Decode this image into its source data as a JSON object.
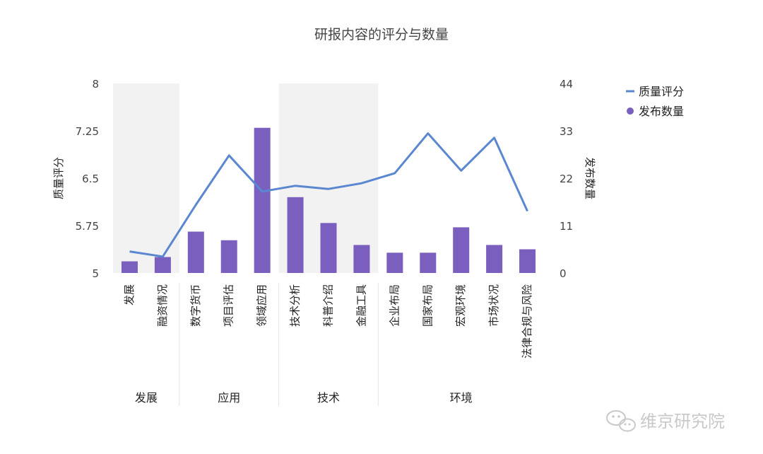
{
  "chart_data": {
    "type": "bar+line",
    "title": "研报内容的评分与数量",
    "y_left": {
      "label": "质量评分",
      "min": 5,
      "max": 8,
      "ticks": [
        "8",
        "7.25",
        "6.5",
        "5.75",
        "5"
      ]
    },
    "y_right": {
      "label": "发布数量",
      "min": 0,
      "max": 44,
      "ticks": [
        "44",
        "33",
        "22",
        "11",
        "0"
      ]
    },
    "categories": [
      "发展",
      "融资情况",
      "数字货币",
      "项目评估",
      "领域应用",
      "技术分析",
      "科普介绍",
      "金融工具",
      "企业布局",
      "国家布局",
      "宏观环境",
      "市场状况",
      "法律合规与风险"
    ],
    "groups": [
      {
        "label": "发展",
        "count": 2,
        "shaded": true
      },
      {
        "label": "应用",
        "count": 3,
        "shaded": false
      },
      {
        "label": "技术",
        "count": 3,
        "shaded": true
      },
      {
        "label": "环境",
        "count": 5,
        "shaded": false
      }
    ],
    "series": [
      {
        "name": "质量评分",
        "type": "line",
        "axis": "left",
        "color": "#5b87d0",
        "values": [
          5.34,
          5.26,
          6.08,
          6.86,
          6.29,
          6.38,
          6.33,
          6.42,
          6.58,
          7.21,
          6.62,
          7.14,
          5.98
        ]
      },
      {
        "name": "发布数量",
        "type": "bar",
        "axis": "right",
        "color": "#7b5fbe",
        "values": [
          2.7,
          3.7,
          9.6,
          7.6,
          33.7,
          17.6,
          11.6,
          6.5,
          4.7,
          4.7,
          10.6,
          6.5,
          5.5
        ]
      }
    ],
    "grid": false,
    "legend": "top-right"
  },
  "watermark": {
    "text": "维京研究院",
    "icon": "wechat-icon"
  }
}
